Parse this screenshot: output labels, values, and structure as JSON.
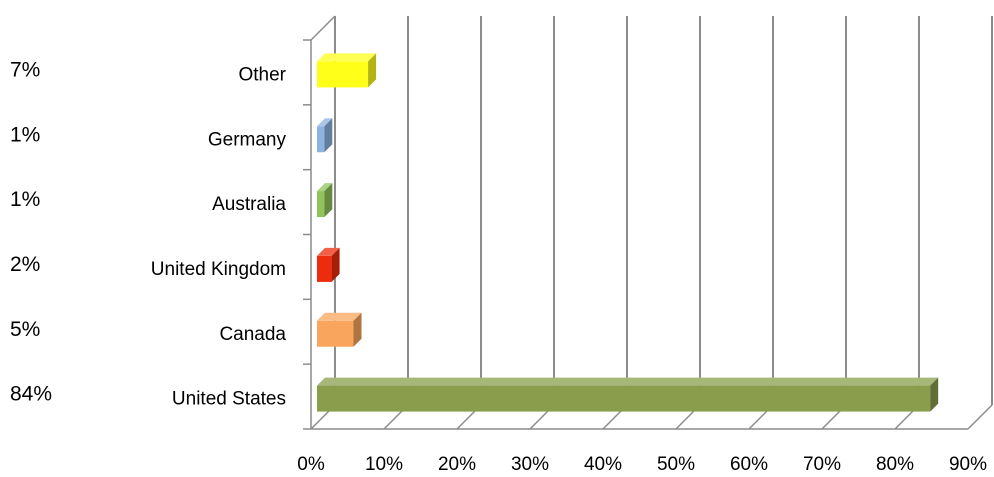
{
  "chart_data": {
    "type": "bar",
    "orientation": "horizontal",
    "style": "3d",
    "title": "",
    "xlabel": "",
    "ylabel": "",
    "categories": [
      "United States",
      "Canada",
      "United Kingdom",
      "Australia",
      "Germany",
      "Other"
    ],
    "values": [
      0.84,
      0.05,
      0.02,
      0.01,
      0.01,
      0.07
    ],
    "value_labels": [
      "84%",
      "5%",
      "2%",
      "1%",
      "1%",
      "7%"
    ],
    "bar_colors": [
      "#8a9d4c",
      "#f9a55d",
      "#ee2b0c",
      "#90c45a",
      "#8db3e2",
      "#ffff1a"
    ],
    "xlim": [
      0,
      0.9
    ],
    "x_ticks": [
      "0%",
      "10%",
      "20%",
      "30%",
      "40%",
      "50%",
      "60%",
      "70%",
      "80%",
      "90%"
    ],
    "grid": "vertical",
    "legend": "none"
  }
}
